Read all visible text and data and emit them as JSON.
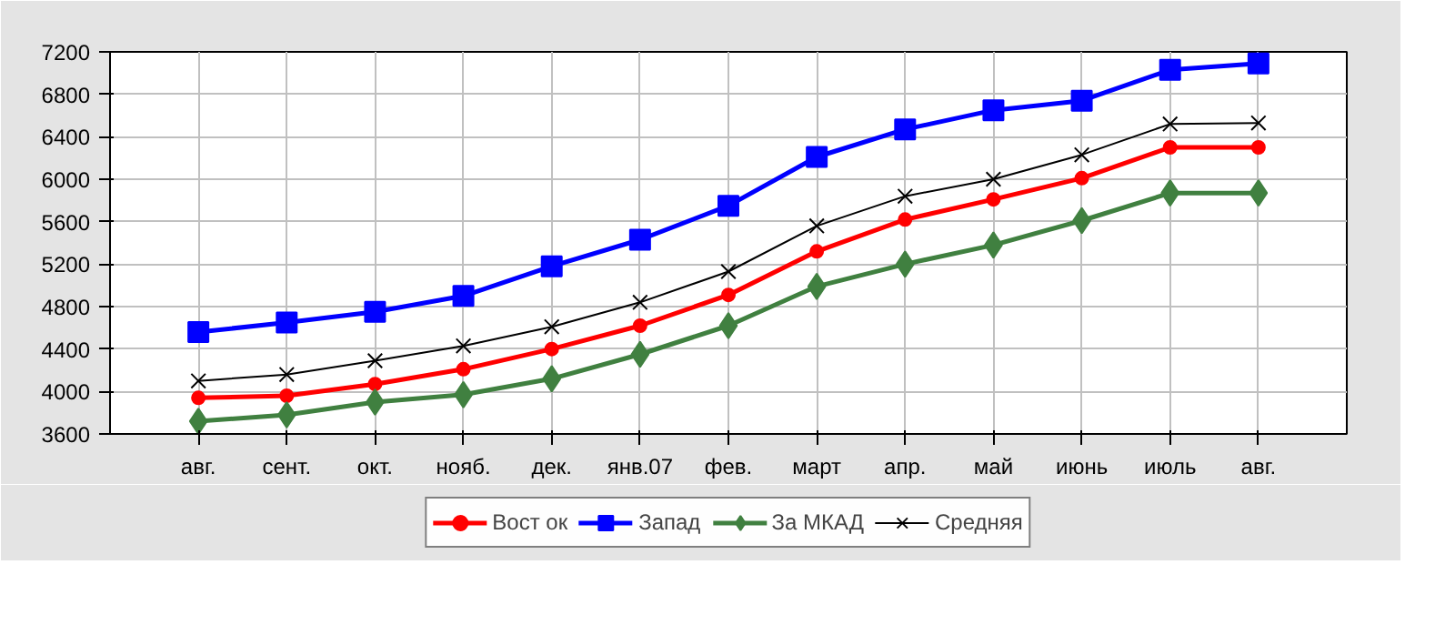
{
  "chart_data": {
    "type": "line",
    "categories": [
      "авг.",
      "сент.",
      "окт.",
      "нояб.",
      "дек.",
      "янв.07",
      "фев.",
      "март",
      "апр.",
      "май",
      "июнь",
      "июль",
      "авг."
    ],
    "ylim": [
      3600,
      7200
    ],
    "yticks": [
      3600,
      4000,
      4400,
      4800,
      5200,
      5600,
      6000,
      6400,
      6800,
      7200
    ],
    "grid": true,
    "legend": "bottom",
    "series": [
      {
        "name": "Вост ок",
        "color": "#ff0000",
        "marker": "circle",
        "values": [
          3940,
          3960,
          4070,
          4210,
          4400,
          4620,
          4910,
          5320,
          5620,
          5810,
          6010,
          6300,
          6300
        ]
      },
      {
        "name": "Запад",
        "color": "#0000ff",
        "marker": "square",
        "values": [
          4560,
          4650,
          4750,
          4900,
          5180,
          5430,
          5750,
          6210,
          6470,
          6650,
          6740,
          7030,
          7090
        ]
      },
      {
        "name": "За МКАД",
        "color": "#408040",
        "marker": "diamond",
        "values": [
          3720,
          3780,
          3900,
          3970,
          4120,
          4350,
          4620,
          4990,
          5200,
          5380,
          5610,
          5870,
          5870
        ]
      },
      {
        "name": "Средняя",
        "color": "#000000",
        "marker": "cross",
        "values": [
          4100,
          4160,
          4290,
          4430,
          4610,
          4840,
          5130,
          5560,
          5840,
          6000,
          6230,
          6520,
          6530
        ]
      }
    ]
  }
}
